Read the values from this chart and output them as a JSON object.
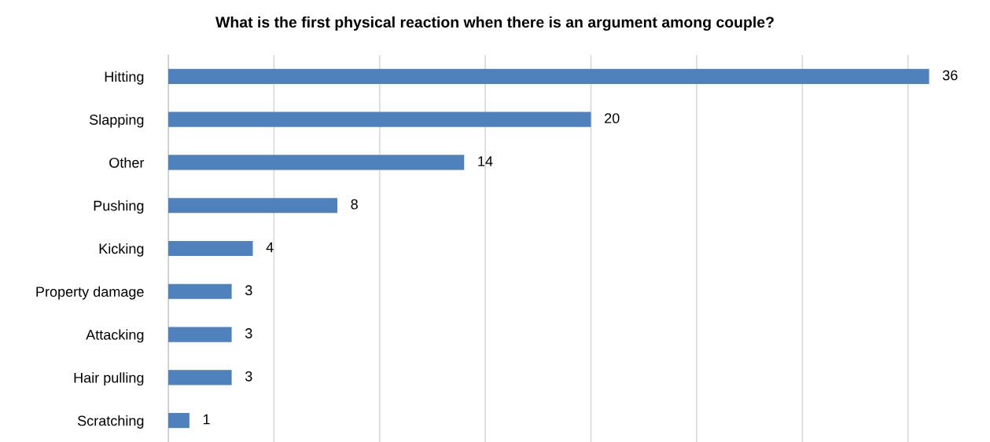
{
  "chart_data": {
    "type": "bar",
    "orientation": "horizontal",
    "title": "What is the first physical reaction when there is an argument among couple?",
    "categories": [
      "Hitting",
      "Slapping",
      "Other",
      "Pushing",
      "Kicking",
      "Property damage",
      "Attacking",
      "Hair pulling",
      "Scratching"
    ],
    "values": [
      36,
      20,
      14,
      8,
      4,
      3,
      3,
      3,
      1
    ],
    "color": "#4f81bd",
    "data_labels": true,
    "grid": "x",
    "tick_labels": "y",
    "xticks": [
      {
        "value": 0,
        "label": null
      },
      {
        "value": 5,
        "label": null
      },
      {
        "value": 10,
        "label": null
      },
      {
        "value": 15,
        "label": null
      },
      {
        "value": 20,
        "label": null
      },
      {
        "value": 25,
        "label": null
      },
      {
        "value": 30,
        "label": null
      },
      {
        "value": 35,
        "label": null
      }
    ]
  }
}
